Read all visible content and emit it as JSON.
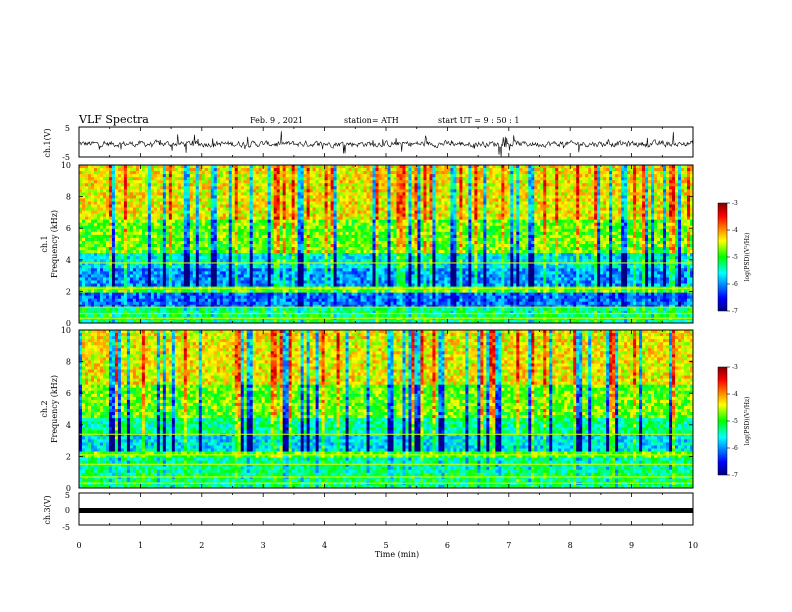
{
  "header": {
    "title": "VLF Spectra",
    "date": "Feb. 9 , 2021",
    "station": "station= ATH",
    "start": "start UT = 9 : 50 : 1"
  },
  "chart_data": [
    {
      "type": "line",
      "panel": "ch1-waveform",
      "ylabel": "ch.1(V)",
      "ylim": [
        -5,
        5
      ],
      "yticks": [
        "5",
        "-5"
      ],
      "xlim": [
        0,
        10
      ],
      "color": "#000000"
    },
    {
      "type": "heatmap",
      "panel": "ch1-spectrogram",
      "ylabel_top": "ch.1",
      "ylabel": "Frequency (kHz)",
      "ylim": [
        0,
        10
      ],
      "yticks": [
        "0",
        "2",
        "4",
        "6",
        "8",
        "10"
      ],
      "xlim": [
        0,
        10
      ],
      "colorbar": {
        "label": "log(PSD)(V²/Hz)",
        "range": [
          -7,
          -3
        ],
        "ticks": [
          "-3",
          "-4",
          "-5",
          "-6",
          "-7"
        ]
      }
    },
    {
      "type": "heatmap",
      "panel": "ch2-spectrogram",
      "ylabel_top": "ch.2",
      "ylabel": "Frequency (kHz)",
      "ylim": [
        0,
        10
      ],
      "yticks": [
        "0",
        "2",
        "4",
        "6",
        "8",
        "10"
      ],
      "xlim": [
        0,
        10
      ],
      "colorbar": {
        "label": "log(PSD)(V²/Hz)",
        "range": [
          -7,
          -3
        ],
        "ticks": [
          "-3",
          "-4",
          "-5",
          "-6",
          "-7"
        ]
      }
    },
    {
      "type": "line",
      "panel": "ch3-waveform",
      "ylabel": "ch.3(V)",
      "ylim": [
        -5,
        5
      ],
      "yticks": [
        "5",
        "0",
        "-5"
      ],
      "xlim": [
        0,
        10
      ],
      "xlabel": "Time (min)",
      "xticks": [
        "0",
        "1",
        "2",
        "3",
        "4",
        "5",
        "6",
        "7",
        "8",
        "9",
        "10"
      ],
      "color": "#000000"
    }
  ]
}
